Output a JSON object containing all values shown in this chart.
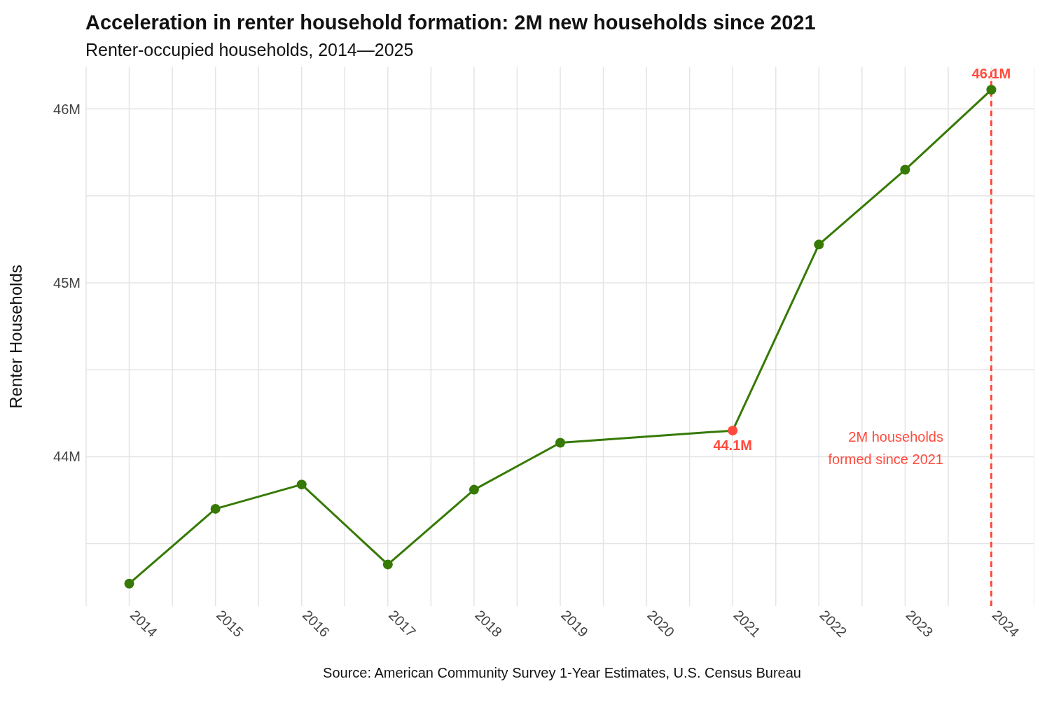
{
  "chart_data": {
    "type": "line",
    "title": "Acceleration in renter household formation: 2M new households since 2021",
    "subtitle": "Renter-occupied households, 2014—2025",
    "ylabel": "Renter Households",
    "x": [
      2014,
      2015,
      2016,
      2017,
      2018,
      2019,
      2021,
      2022,
      2023,
      2024
    ],
    "series": [
      {
        "color": "#367a05",
        "colors": [
          "#367a05",
          "#367a05",
          "#367a05",
          "#367a05",
          "#367a05",
          "#367a05",
          "#ff4b3e",
          "#367a05",
          "#367a05",
          "#367a05"
        ],
        "values": [
          43.27,
          43.7,
          43.84,
          43.38,
          43.81,
          44.08,
          44.15,
          45.22,
          45.65,
          46.11
        ],
        "value_labels": [
          null,
          null,
          null,
          null,
          null,
          null,
          "44.1M",
          null,
          null,
          "46.1M"
        ]
      }
    ],
    "xlim": [
      2013.5,
      2024.5
    ],
    "xticks": [
      2014,
      2015,
      2016,
      2017,
      2018,
      2019,
      2020,
      2021,
      2022,
      2023,
      2024
    ],
    "ylim": [
      43.14,
      46.24
    ],
    "yticks": [
      {
        "value": 44,
        "label": "44M"
      },
      {
        "value": 45,
        "label": "45M"
      },
      {
        "value": 46,
        "label": "46M"
      }
    ],
    "grid": true,
    "marker": "circle",
    "line_style": "solid",
    "ref_lines": [
      {
        "axis": "x",
        "value": 2024,
        "color": "#ff4b3e",
        "line_style": "dashed"
      }
    ],
    "annotations": [
      "2M households\nformed since 2021",
      "Source: American Community Survey 1-Year Estimates, U.S. Census Bureau"
    ]
  }
}
